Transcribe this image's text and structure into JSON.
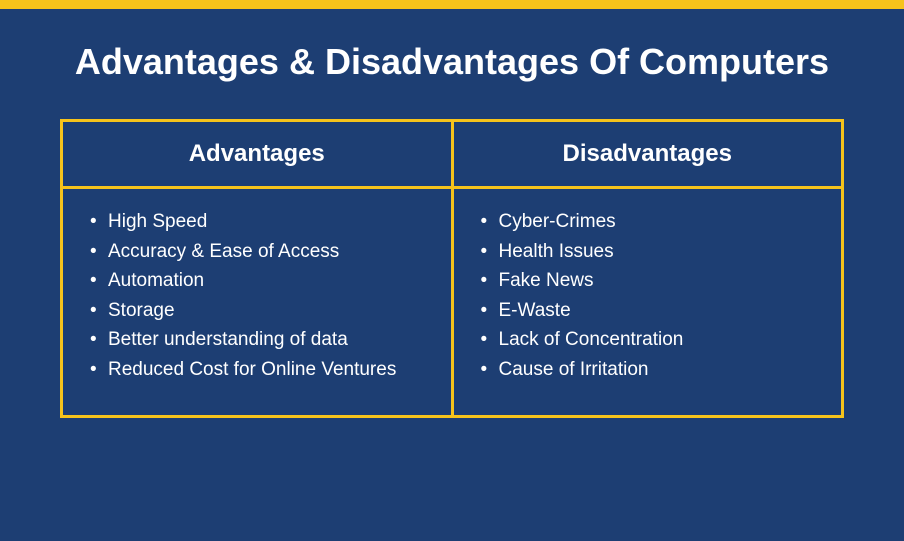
{
  "infographic": {
    "type": "comparison-table",
    "title": "Advantages & Disadvantages Of Computers",
    "title_fontsize": 36,
    "title_color": "#ffffff",
    "background_color": "#1d3e73",
    "accent_color": "#f6c31b",
    "text_color": "#ffffff",
    "top_bar_height": 9,
    "border_width": 3,
    "columns": [
      {
        "header": "Advantages",
        "items": [
          "High Speed",
          "Accuracy & Ease of Access",
          "Automation",
          "Storage",
          "Better understanding of data",
          "Reduced Cost for Online Ventures"
        ]
      },
      {
        "header": "Disadvantages",
        "items": [
          "Cyber-Crimes",
          "Health Issues",
          "Fake News",
          "E-Waste",
          "Lack of Concentration",
          " Cause of Irritation"
        ]
      }
    ],
    "header_fontsize": 24,
    "item_fontsize": 19
  }
}
